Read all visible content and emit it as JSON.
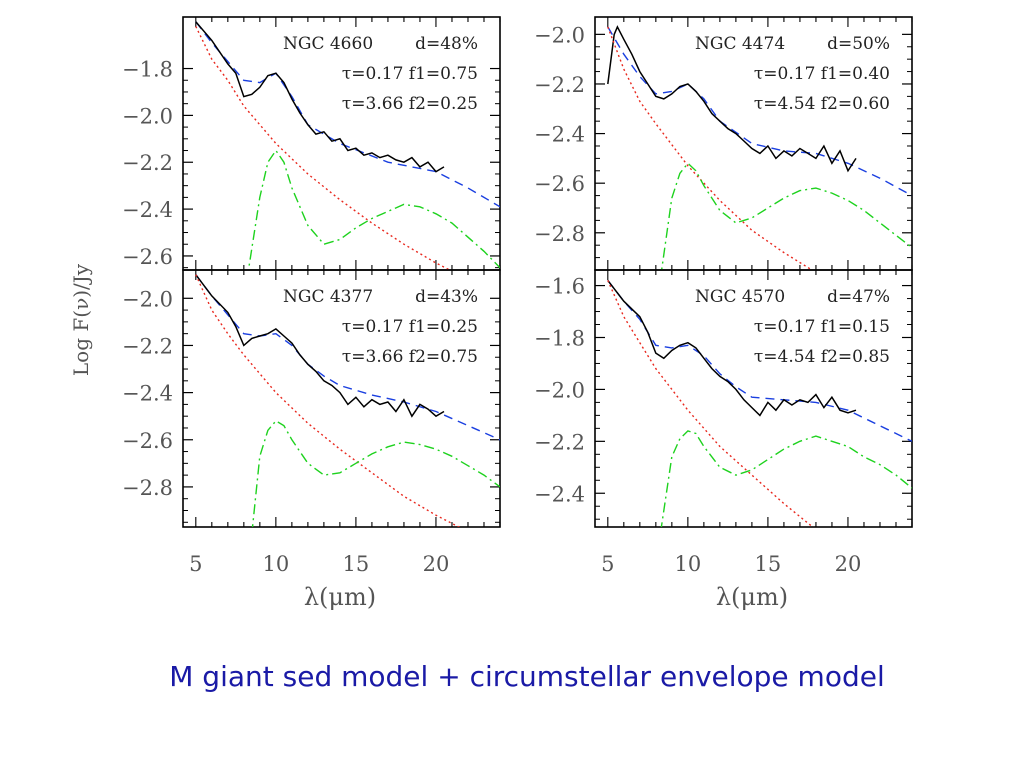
{
  "caption": "M giant sed model + circumstellar envelope model",
  "ylabel": "Log F(ν)/Jy",
  "xlabel": "λ(μm)",
  "colors": {
    "observed": "#000000",
    "model_total": "#1a3fe0",
    "stellar": "#e8281e",
    "envelope": "#1ed21e",
    "caption": "#1a1aa6"
  },
  "legend_styles": {
    "observed": "solid",
    "model_total": "dashed",
    "stellar": "dotted",
    "envelope": "dash-dot"
  },
  "chart_data": [
    {
      "type": "line",
      "annotations": [
        "NGC 4660",
        "d=48%",
        "τ=0.17 f1=0.75",
        "τ=3.66 f2=0.25"
      ],
      "xlim": [
        4.2,
        24
      ],
      "ylim": [
        -2.66,
        -1.58
      ],
      "xticks": [
        5,
        10,
        15,
        20
      ],
      "yticks": [
        -1.8,
        -2.0,
        -2.2,
        -2.4,
        -2.6
      ],
      "ytick_labels": [
        "−1.8",
        "−2.0",
        "−2.2",
        "−2.4",
        "−2.6"
      ],
      "series": [
        {
          "x": [
            5,
            6,
            7,
            8,
            9,
            10,
            11,
            12,
            14,
            17,
            20,
            22,
            24
          ],
          "y": [
            -1.6,
            -1.69,
            -1.77,
            -1.85,
            -1.86,
            -1.82,
            -1.92,
            -2.04,
            -2.12,
            -2.2,
            -2.24,
            -2.31,
            -2.39
          ]
        },
        {
          "x": [
            5,
            6,
            7,
            7.5,
            8,
            8.5,
            9,
            9.5,
            10,
            10.5,
            11,
            11.5,
            12,
            12.5,
            13,
            13.5,
            14,
            14.5,
            15,
            15.5,
            16,
            16.5,
            17,
            17.5,
            18,
            18.5,
            19,
            19.5,
            20,
            20.5
          ],
          "y": [
            -1.6,
            -1.68,
            -1.78,
            -1.82,
            -1.92,
            -1.91,
            -1.88,
            -1.83,
            -1.82,
            -1.86,
            -1.93,
            -1.99,
            -2.04,
            -2.08,
            -2.07,
            -2.11,
            -2.1,
            -2.15,
            -2.14,
            -2.17,
            -2.16,
            -2.18,
            -2.17,
            -2.19,
            -2.2,
            -2.18,
            -2.22,
            -2.2,
            -2.24,
            -2.22
          ]
        },
        {
          "x": [
            5,
            6,
            7,
            8,
            10,
            12,
            14,
            16,
            18,
            20,
            22
          ],
          "y": [
            -1.62,
            -1.76,
            -1.85,
            -1.96,
            -2.12,
            -2.25,
            -2.36,
            -2.46,
            -2.55,
            -2.63,
            -2.7
          ]
        },
        {
          "x": [
            8.2,
            9,
            9.5,
            10,
            10.5,
            11,
            12,
            13,
            14,
            15,
            16,
            17,
            18,
            19,
            20,
            21,
            22,
            23,
            24
          ],
          "y": [
            -2.7,
            -2.35,
            -2.2,
            -2.15,
            -2.2,
            -2.31,
            -2.47,
            -2.55,
            -2.53,
            -2.48,
            -2.44,
            -2.41,
            -2.38,
            -2.39,
            -2.42,
            -2.46,
            -2.52,
            -2.58,
            -2.65
          ]
        }
      ]
    },
    {
      "type": "line",
      "annotations": [
        "NGC 4474",
        "d=50%",
        "τ=0.17 f1=0.40",
        "τ=4.54 f2=0.60"
      ],
      "xlim": [
        4.2,
        24
      ],
      "ylim": [
        -2.95,
        -1.93
      ],
      "xticks": [
        5,
        10,
        15,
        20
      ],
      "yticks": [
        -2.0,
        -2.2,
        -2.4,
        -2.6,
        -2.8
      ],
      "ytick_labels": [
        "−2.0",
        "−2.2",
        "−2.4",
        "−2.6",
        "−2.8"
      ],
      "series": [
        {
          "x": [
            5,
            6,
            7,
            8,
            9,
            10,
            11,
            12,
            14,
            16,
            18,
            20,
            22,
            24
          ],
          "y": [
            -1.97,
            -2.08,
            -2.17,
            -2.24,
            -2.23,
            -2.2,
            -2.26,
            -2.35,
            -2.44,
            -2.47,
            -2.48,
            -2.52,
            -2.58,
            -2.65
          ]
        },
        {
          "x": [
            5,
            5.4,
            5.6,
            6,
            6.5,
            7,
            7.5,
            8,
            8.5,
            9,
            9.5,
            10,
            10.5,
            11,
            11.5,
            12,
            12.5,
            13,
            13.5,
            14,
            14.5,
            15,
            15.5,
            16,
            16.5,
            17,
            17.5,
            18,
            18.5,
            19,
            19.5,
            20,
            20.5
          ],
          "y": [
            -2.2,
            -2.0,
            -1.97,
            -2.02,
            -2.08,
            -2.15,
            -2.2,
            -2.25,
            -2.26,
            -2.24,
            -2.21,
            -2.2,
            -2.23,
            -2.27,
            -2.32,
            -2.35,
            -2.38,
            -2.4,
            -2.43,
            -2.46,
            -2.48,
            -2.45,
            -2.5,
            -2.47,
            -2.49,
            -2.46,
            -2.48,
            -2.5,
            -2.45,
            -2.52,
            -2.47,
            -2.55,
            -2.5
          ]
        },
        {
          "x": [
            5,
            6,
            7,
            8,
            10,
            12,
            14,
            16,
            18,
            20
          ],
          "y": [
            -1.97,
            -2.14,
            -2.27,
            -2.36,
            -2.53,
            -2.67,
            -2.79,
            -2.88,
            -2.96,
            -3.03
          ]
        },
        {
          "x": [
            8.3,
            9,
            9.5,
            10,
            10.5,
            11,
            12,
            13,
            14,
            15,
            16,
            17,
            18,
            19,
            20,
            21,
            22,
            23,
            24
          ],
          "y": [
            -2.98,
            -2.66,
            -2.56,
            -2.52,
            -2.55,
            -2.61,
            -2.71,
            -2.76,
            -2.74,
            -2.7,
            -2.66,
            -2.63,
            -2.62,
            -2.64,
            -2.67,
            -2.71,
            -2.76,
            -2.81,
            -2.86
          ]
        }
      ]
    },
    {
      "type": "line",
      "annotations": [
        "NGC 4377",
        "d=43%",
        "τ=0.17 f1=0.25",
        "τ=3.66 f2=0.75"
      ],
      "xlim": [
        4.2,
        24
      ],
      "ylim": [
        -2.97,
        -1.88
      ],
      "xticks": [
        5,
        10,
        15,
        20
      ],
      "yticks": [
        -2.0,
        -2.2,
        -2.4,
        -2.6,
        -2.8
      ],
      "ytick_labels": [
        "−2.0",
        "−2.2",
        "−2.4",
        "−2.6",
        "−2.8"
      ],
      "series": [
        {
          "x": [
            5,
            6,
            7,
            8,
            9,
            10,
            11,
            12,
            13,
            14,
            16,
            18,
            20,
            22,
            24
          ],
          "y": [
            -1.9,
            -1.99,
            -2.07,
            -2.15,
            -2.16,
            -2.15,
            -2.2,
            -2.28,
            -2.33,
            -2.37,
            -2.41,
            -2.44,
            -2.48,
            -2.54,
            -2.6
          ]
        },
        {
          "x": [
            5,
            6,
            7,
            7.5,
            8,
            8.5,
            9,
            9.5,
            10,
            10.5,
            11,
            11.5,
            12,
            12.5,
            13,
            13.5,
            14,
            14.5,
            15,
            15.5,
            16,
            16.5,
            17,
            17.5,
            18,
            18.5,
            19,
            19.5,
            20,
            20.5
          ],
          "y": [
            -1.9,
            -1.99,
            -2.06,
            -2.12,
            -2.2,
            -2.17,
            -2.16,
            -2.15,
            -2.13,
            -2.16,
            -2.19,
            -2.24,
            -2.28,
            -2.31,
            -2.35,
            -2.37,
            -2.4,
            -2.45,
            -2.42,
            -2.46,
            -2.43,
            -2.45,
            -2.44,
            -2.48,
            -2.43,
            -2.5,
            -2.45,
            -2.47,
            -2.5,
            -2.48
          ]
        },
        {
          "x": [
            5,
            6,
            7,
            8,
            10,
            12,
            14,
            16,
            18,
            20,
            22
          ],
          "y": [
            -1.9,
            -2.05,
            -2.15,
            -2.24,
            -2.4,
            -2.53,
            -2.64,
            -2.74,
            -2.84,
            -2.92,
            -2.99
          ]
        },
        {
          "x": [
            8.5,
            9,
            9.5,
            10,
            10.5,
            11,
            12,
            13,
            14,
            15,
            16,
            17,
            18,
            19,
            20,
            21,
            22,
            23,
            24
          ],
          "y": [
            -3.0,
            -2.67,
            -2.56,
            -2.52,
            -2.54,
            -2.6,
            -2.7,
            -2.75,
            -2.74,
            -2.7,
            -2.66,
            -2.63,
            -2.61,
            -2.62,
            -2.64,
            -2.67,
            -2.71,
            -2.75,
            -2.8
          ]
        }
      ]
    },
    {
      "type": "line",
      "annotations": [
        "NGC 4570",
        "d=47%",
        "τ=0.17 f1=0.15",
        "τ=4.54 f2=0.85"
      ],
      "xlim": [
        4.2,
        24
      ],
      "ylim": [
        -2.53,
        -1.54
      ],
      "xticks": [
        5,
        10,
        15,
        20
      ],
      "yticks": [
        -1.6,
        -1.8,
        -2.0,
        -2.2,
        -2.4
      ],
      "ytick_labels": [
        "−1.6",
        "−1.8",
        "−2.0",
        "−2.2",
        "−2.4"
      ],
      "series": [
        {
          "x": [
            5,
            6,
            7,
            8,
            9,
            10,
            11,
            12,
            13,
            14,
            16,
            18,
            20,
            22,
            24
          ],
          "y": [
            -1.58,
            -1.66,
            -1.73,
            -1.83,
            -1.84,
            -1.83,
            -1.87,
            -1.94,
            -1.99,
            -2.03,
            -2.04,
            -2.05,
            -2.08,
            -2.14,
            -2.2
          ]
        },
        {
          "x": [
            5,
            6,
            7,
            7.5,
            8,
            8.5,
            9,
            9.5,
            10,
            10.5,
            11,
            11.5,
            12,
            12.5,
            13,
            13.5,
            14,
            14.5,
            15,
            15.5,
            16,
            16.5,
            17,
            17.5,
            18,
            18.5,
            19,
            19.5,
            20,
            20.5
          ],
          "y": [
            -1.58,
            -1.66,
            -1.72,
            -1.78,
            -1.86,
            -1.88,
            -1.85,
            -1.83,
            -1.82,
            -1.84,
            -1.88,
            -1.92,
            -1.95,
            -1.97,
            -2.0,
            -2.04,
            -2.07,
            -2.1,
            -2.05,
            -2.08,
            -2.04,
            -2.06,
            -2.04,
            -2.05,
            -2.02,
            -2.07,
            -2.03,
            -2.08,
            -2.09,
            -2.08
          ]
        },
        {
          "x": [
            5,
            6,
            7,
            8,
            10,
            12,
            14,
            16,
            18,
            20
          ],
          "y": [
            -1.58,
            -1.72,
            -1.82,
            -1.92,
            -2.08,
            -2.22,
            -2.33,
            -2.44,
            -2.54,
            -2.62
          ]
        },
        {
          "x": [
            8.3,
            9,
            9.5,
            10,
            10.5,
            11,
            12,
            13,
            14,
            15,
            16,
            17,
            18,
            19,
            20,
            21,
            22,
            23,
            24
          ],
          "y": [
            -2.55,
            -2.26,
            -2.19,
            -2.16,
            -2.17,
            -2.22,
            -2.3,
            -2.33,
            -2.31,
            -2.27,
            -2.23,
            -2.2,
            -2.18,
            -2.2,
            -2.22,
            -2.26,
            -2.29,
            -2.33,
            -2.38
          ]
        }
      ]
    }
  ]
}
